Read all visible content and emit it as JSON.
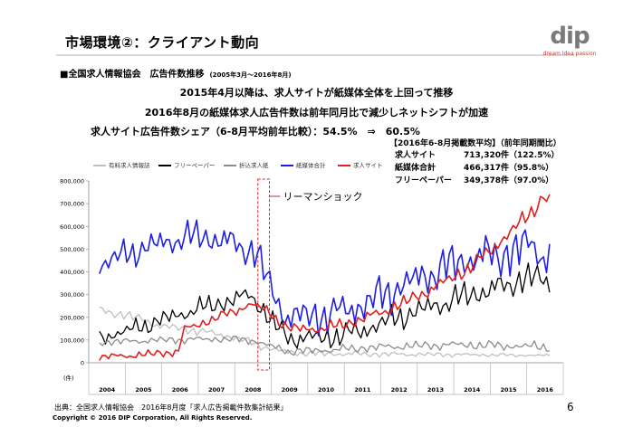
{
  "header": {
    "title": "市場環境②：クライアント動向",
    "logo": "dip",
    "logo_tagline": "dream idea passion"
  },
  "section": {
    "title": "■全国求人情報協会　広告件数推移",
    "period": "(2005年3月～2016年8月)"
  },
  "headlines": [
    "2015年4月以降は、求人サイトが紙媒体全体を上回って推移",
    "2016年8月の紙媒体求人広告件数は前年同月比で減少しネットシフトが加速",
    "求人サイト広告件数シェア（6-8月平均前年比較）：54.5%　⇒　60.5%"
  ],
  "panel": {
    "title": "【2016年6-8月掲載数平均】（前年同期間比）",
    "rows": [
      {
        "label": "求人サイト",
        "value": "713,320件（122.5%）"
      },
      {
        "label": "紙媒体合計",
        "value": "466,317件（95.8%）"
      },
      {
        "label": "フリーペーパー",
        "value": "349,378件（97.0%）"
      }
    ]
  },
  "annotation": "リーマンショック",
  "footer": {
    "source": "出典：全国求人情報協会　2016年8月度「求人広告掲載件数集計結果」",
    "copyright": "Copyright © 2016 DIP Corporation, All Rights Reserved.",
    "page": "6"
  },
  "chart_data": {
    "type": "line",
    "y_unit": "(件)",
    "ylim": [
      0,
      800000
    ],
    "yticks": [
      "0",
      "100,000",
      "200,000",
      "300,000",
      "400,000",
      "500,000",
      "600,000",
      "700,000",
      "800,000"
    ],
    "ytick_values": [
      0,
      100000,
      200000,
      300000,
      400000,
      500000,
      600000,
      700000,
      800000
    ],
    "years": [
      "2004",
      "2005",
      "2006",
      "2007",
      "2008",
      "2009",
      "2010",
      "2011",
      "2012",
      "2013",
      "2014",
      "2015",
      "2016"
    ],
    "grid": false,
    "legend_position": "top",
    "highlight_period": {
      "label": "リーマンショック",
      "start": "2008-09",
      "end": "2008-11"
    },
    "series": [
      {
        "name": "有料求人情報誌",
        "color": "#bfbfbf",
        "anchors": [
          [
            "2004-04",
            230000
          ],
          [
            "2005-01",
            210000
          ],
          [
            "2006-01",
            160000
          ],
          [
            "2007-01",
            140000
          ],
          [
            "2008-01",
            110000
          ],
          [
            "2008-10",
            70000
          ],
          [
            "2009-06",
            45000
          ],
          [
            "2010-06",
            40000
          ],
          [
            "2012-01",
            38000
          ],
          [
            "2014-01",
            36000
          ],
          [
            "2016-08",
            32000
          ]
        ],
        "amp": [
          15000,
          4000
        ]
      },
      {
        "name": "フリーペーパー",
        "color": "#000000",
        "anchors": [
          [
            "2004-04",
            110000
          ],
          [
            "2005-01",
            140000
          ],
          [
            "2006-01",
            190000
          ],
          [
            "2007-01",
            240000
          ],
          [
            "2008-01",
            280000
          ],
          [
            "2008-06",
            300000
          ],
          [
            "2008-12",
            190000
          ],
          [
            "2009-06",
            110000
          ],
          [
            "2010-06",
            110000
          ],
          [
            "2011-06",
            140000
          ],
          [
            "2012-06",
            200000
          ],
          [
            "2013-06",
            250000
          ],
          [
            "2014-06",
            300000
          ],
          [
            "2015-06",
            340000
          ],
          [
            "2016-01",
            380000
          ],
          [
            "2016-08",
            350000
          ]
        ],
        "amp": [
          25000,
          45000
        ]
      },
      {
        "name": "折込求人紙",
        "color": "#8c8c8c",
        "anchors": [
          [
            "2004-04",
            90000
          ],
          [
            "2006-01",
            100000
          ],
          [
            "2007-06",
            105000
          ],
          [
            "2008-06",
            100000
          ],
          [
            "2009-06",
            50000
          ],
          [
            "2010-06",
            55000
          ],
          [
            "2012-01",
            70000
          ],
          [
            "2014-01",
            80000
          ],
          [
            "2016-08",
            70000
          ]
        ],
        "amp": [
          10000,
          15000
        ]
      },
      {
        "name": "紙媒体合計",
        "color": "#1f1fe0",
        "anchors": [
          [
            "2004-04",
            430000
          ],
          [
            "2005-01",
            480000
          ],
          [
            "2006-01",
            530000
          ],
          [
            "2007-01",
            560000
          ],
          [
            "2008-01",
            520000
          ],
          [
            "2008-08",
            480000
          ],
          [
            "2009-01",
            300000
          ],
          [
            "2009-06",
            200000
          ],
          [
            "2010-06",
            210000
          ],
          [
            "2011-06",
            250000
          ],
          [
            "2012-06",
            330000
          ],
          [
            "2013-06",
            400000
          ],
          [
            "2014-06",
            460000
          ],
          [
            "2015-06",
            480000
          ],
          [
            "2016-02",
            520000
          ],
          [
            "2016-08",
            460000
          ]
        ],
        "amp": [
          40000,
          70000
        ]
      },
      {
        "name": "求人サイト",
        "color": "#e02020",
        "anchors": [
          [
            "2004-04",
            25000
          ],
          [
            "2005-06",
            35000
          ],
          [
            "2006-06",
            50000
          ],
          [
            "2006-08",
            150000
          ],
          [
            "2007-01",
            170000
          ],
          [
            "2008-01",
            230000
          ],
          [
            "2008-06",
            260000
          ],
          [
            "2008-12",
            220000
          ],
          [
            "2009-06",
            150000
          ],
          [
            "2010-06",
            150000
          ],
          [
            "2011-06",
            190000
          ],
          [
            "2012-06",
            250000
          ],
          [
            "2013-06",
            330000
          ],
          [
            "2014-06",
            420000
          ],
          [
            "2015-06",
            560000
          ],
          [
            "2016-01",
            650000
          ],
          [
            "2016-06",
            730000
          ],
          [
            "2016-08",
            710000
          ]
        ],
        "amp": [
          10000,
          25000
        ]
      }
    ]
  }
}
